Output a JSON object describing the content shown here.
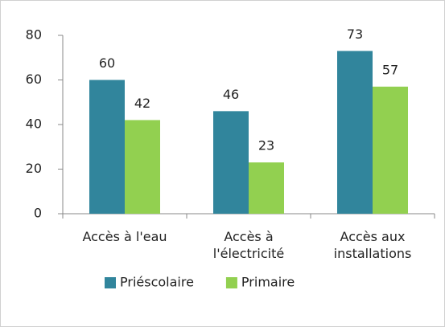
{
  "chart_data": {
    "type": "bar",
    "categories": [
      "Accès à l'eau",
      "Accès à l'électricité",
      "Accès aux installations"
    ],
    "series": [
      {
        "name": "Priéscolaire",
        "color": "#31859c",
        "values": [
          60,
          46,
          73
        ]
      },
      {
        "name": "Primaire",
        "color": "#92d050",
        "values": [
          42,
          23,
          57
        ]
      }
    ],
    "ylim": [
      0,
      80
    ],
    "yticks": [
      0,
      20,
      40,
      60,
      80
    ],
    "grid": false,
    "legend": "bottom"
  }
}
